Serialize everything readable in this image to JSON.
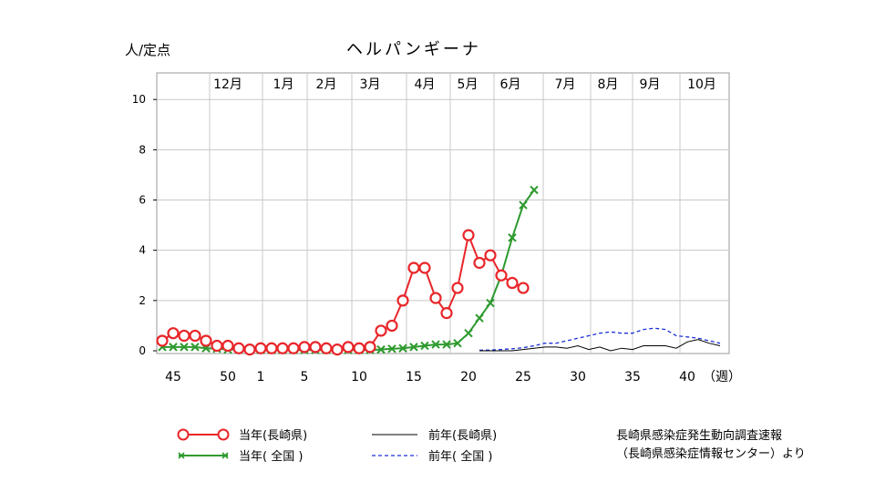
{
  "unit_label": "人/定点",
  "source": {
    "line1": "長崎県感染症発生動向調査速報",
    "line2": "（長崎県感染症情報センター）より"
  },
  "colors": {
    "current_nagasaki": "#e8262a",
    "current_national": "#2e9a2e",
    "prev_nagasaki": "#000000",
    "prev_national": "#1a2fd6",
    "grid": "#c8c8c8"
  },
  "chart_data": {
    "type": "line",
    "title": "ヘルパンギーナ",
    "ylabel": "人/定点",
    "ylim": [
      0,
      11
    ],
    "yticks": [
      0,
      2,
      4,
      6,
      8,
      10
    ],
    "week_ticks": [
      {
        "week": 45,
        "label": "45"
      },
      {
        "week": 50,
        "label": "50"
      },
      {
        "week": 1,
        "label": "1"
      },
      {
        "week": 5,
        "label": "5"
      },
      {
        "week": 10,
        "label": "10"
      },
      {
        "week": 15,
        "label": "15"
      },
      {
        "week": 20,
        "label": "20"
      },
      {
        "week": 25,
        "label": "25"
      },
      {
        "week": 30,
        "label": "30"
      },
      {
        "week": 35,
        "label": "35"
      },
      {
        "week": 40,
        "label": "40"
      }
    ],
    "week_unit": "（週）",
    "months": [
      "12月",
      "1月",
      "2月",
      "3月",
      "4月",
      "5月",
      "6月",
      "7月",
      "8月",
      "9月",
      "10月"
    ],
    "x": [
      "44",
      "45",
      "46",
      "47",
      "48",
      "49",
      "50",
      "51",
      "52",
      "1",
      "2",
      "3",
      "4",
      "5",
      "6",
      "7",
      "8",
      "9",
      "10",
      "11",
      "12",
      "13",
      "14",
      "15",
      "16",
      "17",
      "18",
      "19",
      "20",
      "21",
      "22",
      "23",
      "24",
      "25",
      "26",
      "27",
      "28",
      "29",
      "30",
      "31",
      "32",
      "33",
      "34",
      "35",
      "36",
      "37",
      "38",
      "39",
      "40",
      "41",
      "42",
      "43"
    ],
    "series": [
      {
        "name": "当年(長崎県)",
        "values": [
          0.4,
          0.7,
          0.6,
          0.6,
          0.4,
          0.2,
          0.2,
          0.1,
          0.05,
          0.1,
          0.1,
          0.1,
          0.1,
          0.15,
          0.15,
          0.1,
          0.05,
          0.15,
          0.1,
          0.15,
          0.8,
          1.0,
          2.0,
          3.3,
          3.3,
          2.1,
          1.5,
          2.5,
          4.6,
          3.5,
          3.8,
          3.0,
          2.7,
          2.5,
          null,
          null,
          null,
          null,
          null,
          null,
          null,
          null,
          null,
          null,
          null,
          null,
          null,
          null,
          null,
          null,
          null,
          null
        ]
      },
      {
        "name": "当年( 全国 )",
        "values": [
          0.15,
          0.15,
          0.15,
          0.15,
          0.1,
          0.08,
          0.05,
          0.05,
          0.05,
          0.03,
          0.03,
          0.03,
          0.03,
          0.03,
          0.03,
          0.03,
          0.03,
          0.03,
          0.03,
          0.03,
          0.05,
          0.08,
          0.1,
          0.15,
          0.2,
          0.25,
          0.25,
          0.3,
          0.7,
          1.3,
          1.9,
          3.0,
          4.5,
          5.8,
          6.4,
          null,
          null,
          null,
          null,
          null,
          null,
          null,
          null,
          null,
          null,
          null,
          null,
          null,
          null,
          null,
          null,
          null
        ]
      },
      {
        "name": "前年(長崎県)",
        "values": [
          null,
          null,
          null,
          null,
          null,
          null,
          null,
          null,
          null,
          null,
          null,
          null,
          null,
          null,
          null,
          null,
          null,
          null,
          null,
          null,
          null,
          null,
          null,
          null,
          null,
          null,
          null,
          null,
          null,
          0.0,
          0.0,
          0.0,
          0.0,
          0.05,
          0.1,
          0.15,
          0.15,
          0.1,
          0.2,
          0.05,
          0.15,
          0.0,
          0.1,
          0.05,
          0.2,
          0.2,
          0.2,
          0.1,
          0.35,
          0.45,
          0.3,
          0.2
        ]
      },
      {
        "name": "前年( 全国 )",
        "values": [
          null,
          null,
          null,
          null,
          null,
          null,
          null,
          null,
          null,
          null,
          null,
          null,
          null,
          null,
          null,
          null,
          null,
          null,
          null,
          null,
          null,
          null,
          null,
          null,
          null,
          null,
          null,
          null,
          null,
          0.02,
          0.03,
          0.05,
          0.08,
          0.12,
          0.2,
          0.3,
          0.3,
          0.4,
          0.5,
          0.6,
          0.7,
          0.75,
          0.7,
          0.7,
          0.85,
          0.9,
          0.85,
          0.6,
          0.55,
          0.5,
          0.4,
          0.3
        ]
      }
    ],
    "legend": [
      {
        "label": "当年(長崎県)",
        "series": 0
      },
      {
        "label": "当年( 全国 )",
        "series": 1
      },
      {
        "label": "前年(長崎県)",
        "series": 2
      },
      {
        "label": "前年( 全国 )",
        "series": 3
      }
    ],
    "legend_position": "bottom",
    "grid": true
  }
}
